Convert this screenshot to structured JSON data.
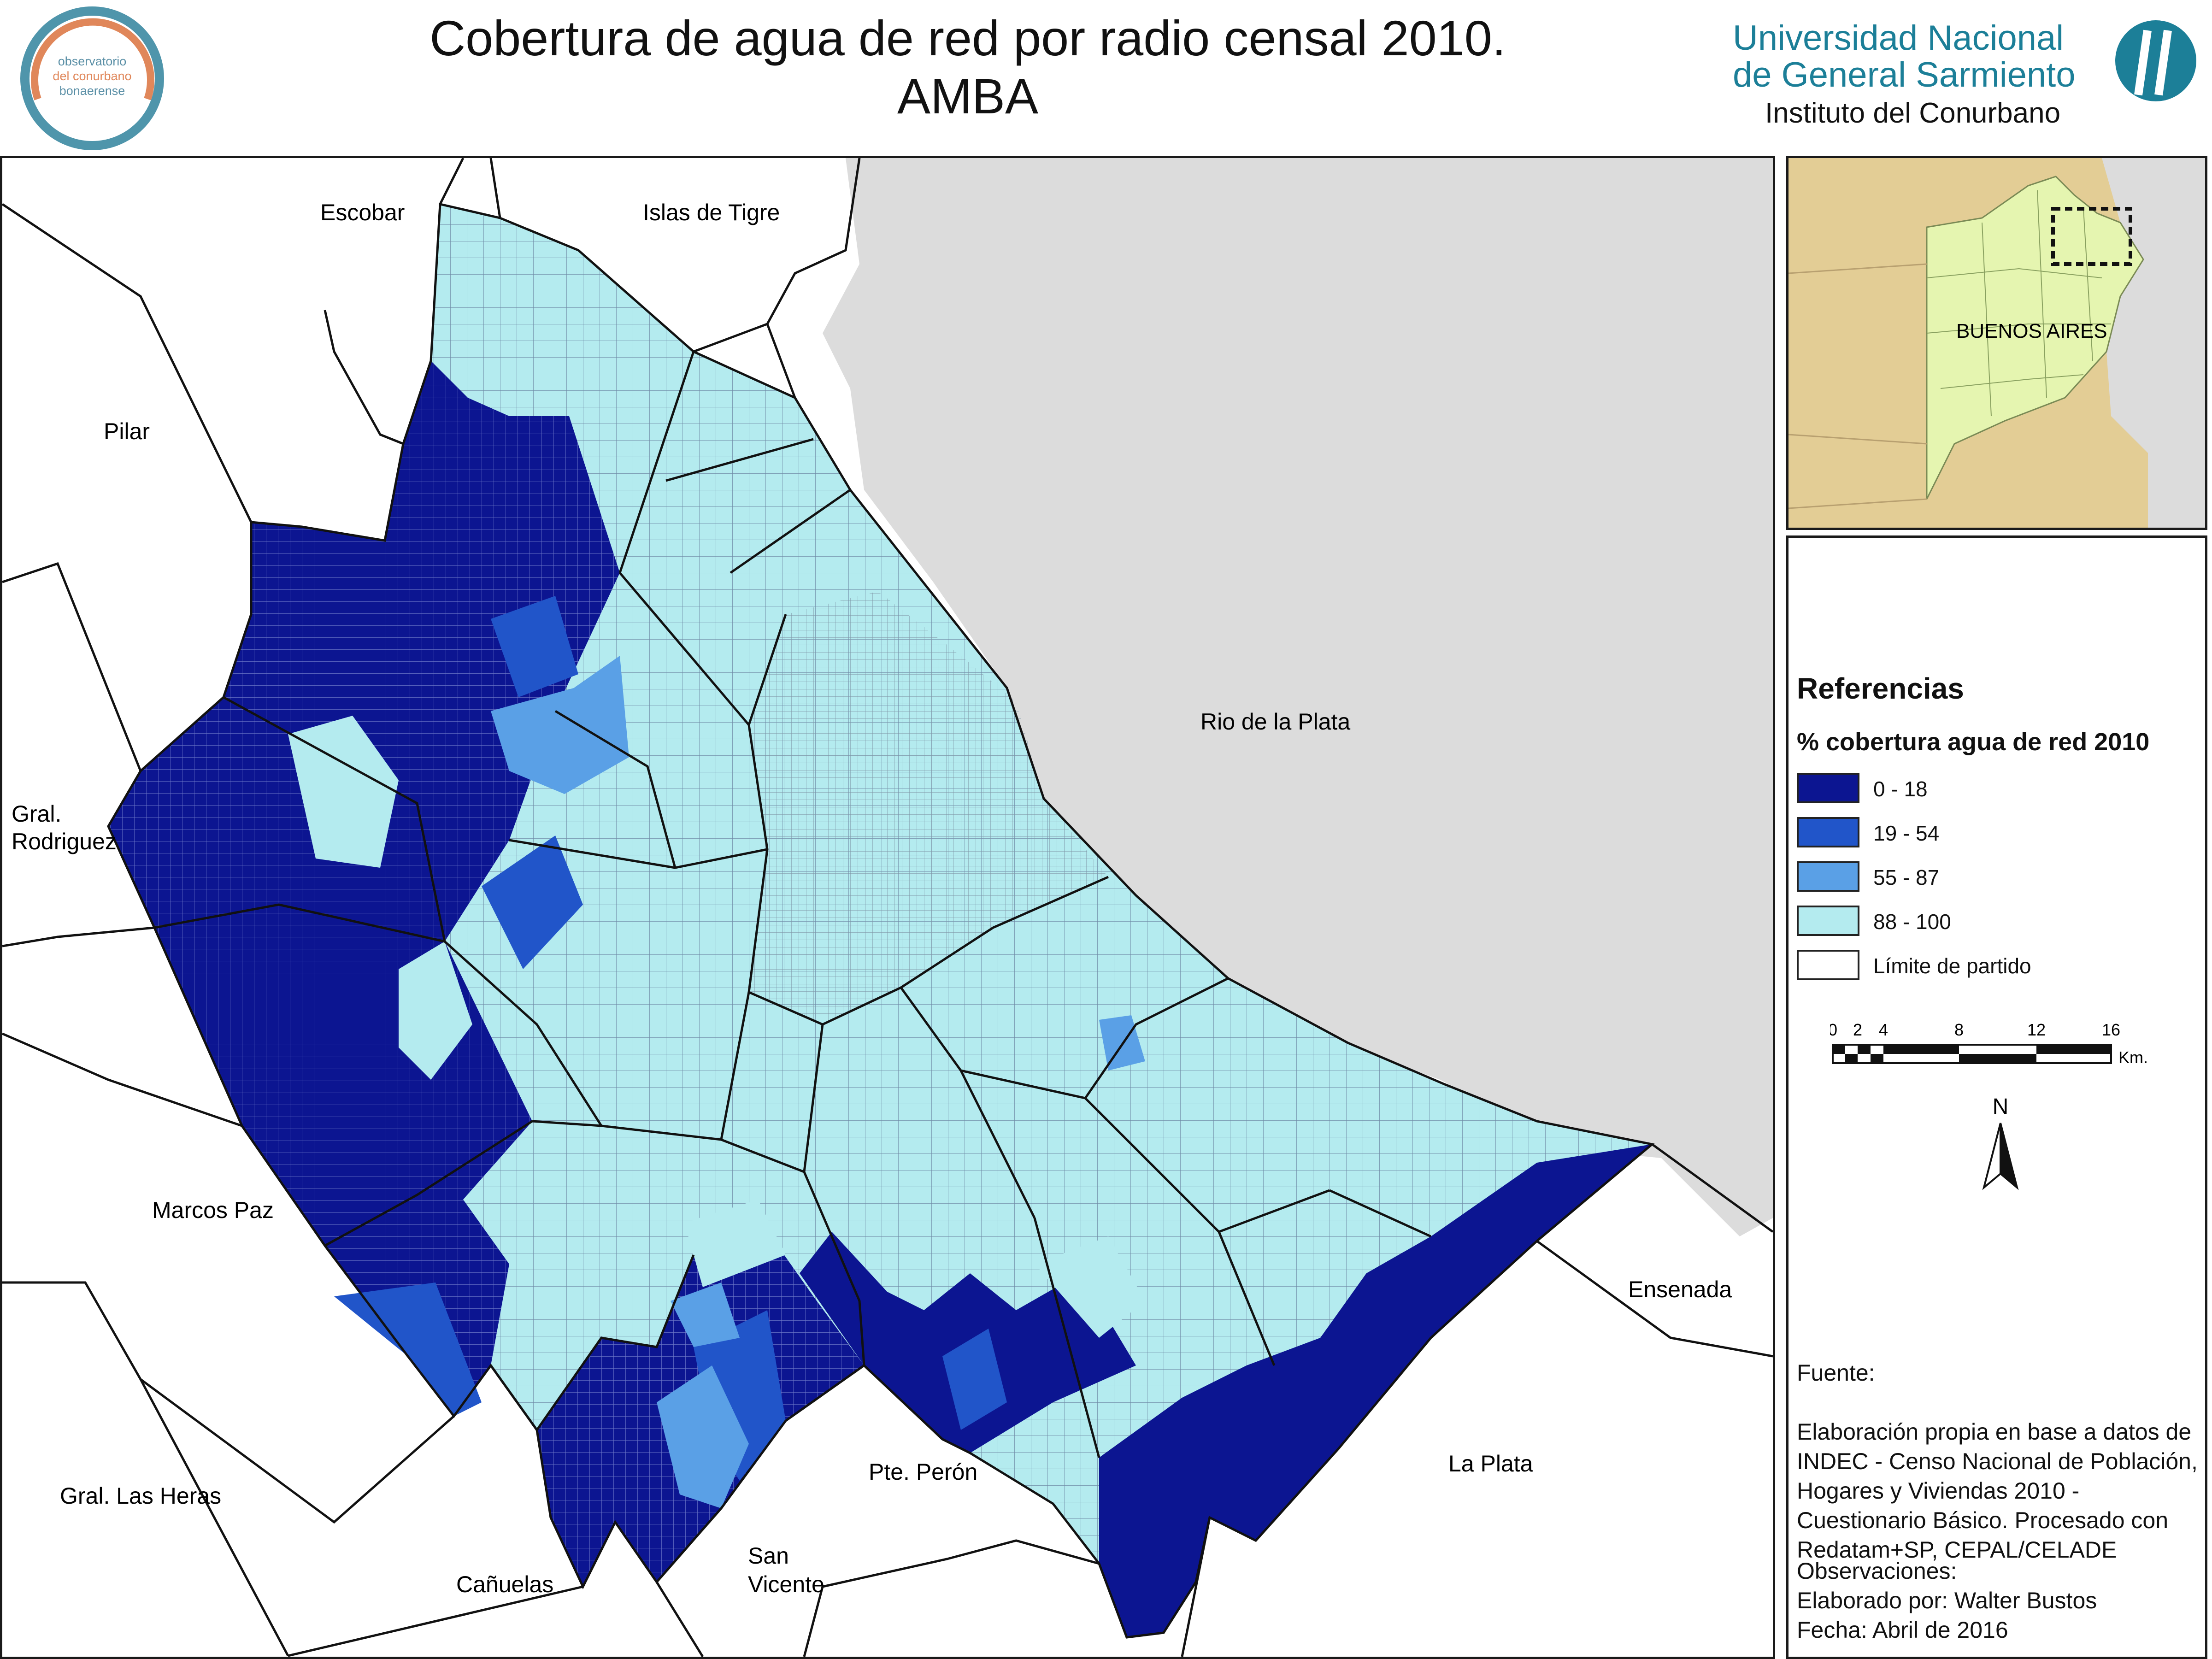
{
  "header": {
    "title_line1": "Cobertura de agua de red por radio censal 2010.",
    "title_line2": "AMBA"
  },
  "logo_left": {
    "line1": "observatorio",
    "line2": "del conurbano",
    "line3": "bonaerense",
    "colors": {
      "ring": "#4f95ab",
      "arc": "#e0875a",
      "text": "#5a8fa6"
    }
  },
  "logo_right": {
    "line1": "Universidad  Nacional",
    "line2": "de General Sarmiento",
    "line3": "Instituto del Conurbano",
    "colors": {
      "text": "#1c7f98",
      "emblem": "#1c7f98"
    }
  },
  "map": {
    "labels": {
      "escobar": "Escobar",
      "islas_tigre": "Islas de Tigre",
      "pilar": "Pilar",
      "rio_plata": "Rio de la Plata",
      "gral_rodriguez_1": "Gral.",
      "gral_rodriguez_2": "Rodriguez",
      "marcos_paz": "Marcos Paz",
      "gral_las_heras": "Gral. Las Heras",
      "canuelas": "Cañuelas",
      "san_vicente_1": "San",
      "san_vicente_2": "Vicente",
      "pte_peron": "Pte. Perón",
      "la_plata": "La Plata",
      "ensenada": "Ensenada"
    },
    "colors": {
      "water": "#dcdcdc",
      "outside": "#ffffff",
      "boundary": "#111111"
    }
  },
  "inset": {
    "label": "BUENOS AIRES",
    "colors": {
      "land": "#e3cd95",
      "province": "#e5f5b0",
      "ocean": "#dcdcdc"
    }
  },
  "legend": {
    "title": "Referencias",
    "subtitle": "% cobertura agua de red 2010",
    "items": [
      {
        "label": "0 - 18",
        "color": "#0c1591"
      },
      {
        "label": "19 - 54",
        "color": "#2155c9"
      },
      {
        "label": "55 - 87",
        "color": "#5aa0e6"
      },
      {
        "label": "88 - 100",
        "color": "#b4ebef"
      },
      {
        "label": "Límite de partido",
        "color": "#ffffff"
      }
    ],
    "scale": {
      "ticks": [
        "0",
        "2",
        "4",
        "8",
        "12",
        "16"
      ],
      "unit": "Km."
    },
    "north": "N"
  },
  "source": {
    "heading": "Fuente:",
    "text": "Elaboración propia en base a datos de INDEC - Censo Nacional de Población, Hogares y Viviendas 2010 - Cuestionario Básico. Procesado con Redatam+SP, CEPAL/CELADE"
  },
  "observations": {
    "heading": "Observaciones:",
    "author": "Elaborado por: Walter Bustos",
    "date": "Fecha: Abril de 2016"
  }
}
